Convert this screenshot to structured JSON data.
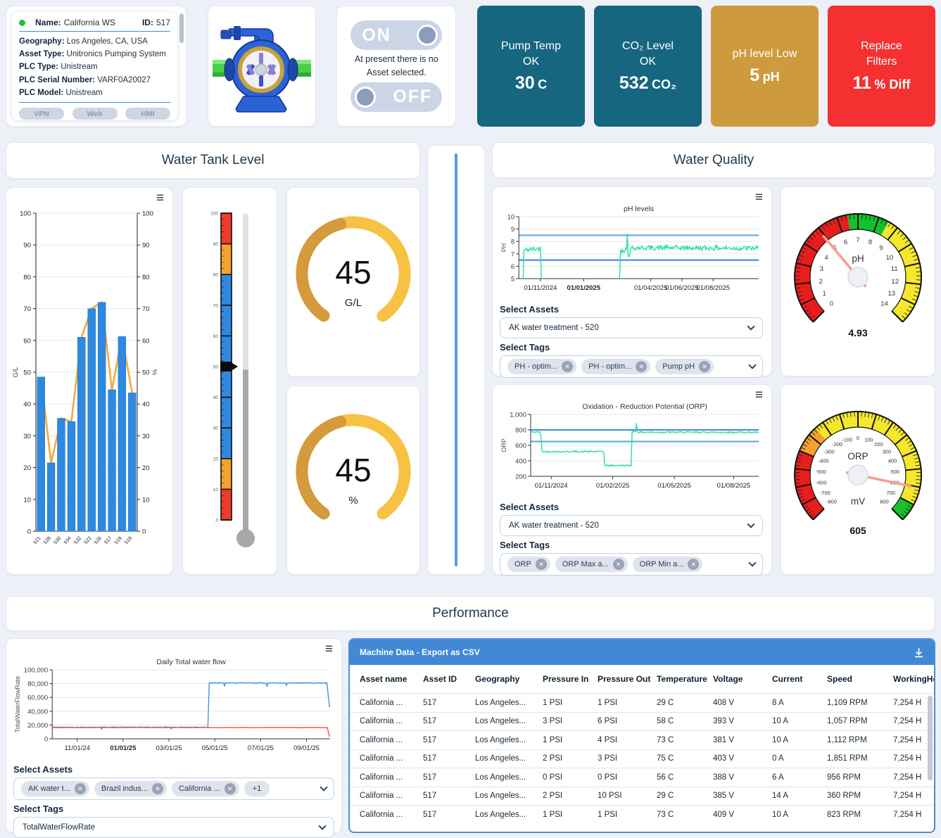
{
  "asset_card": {
    "name_label": "Name:",
    "name_value": "California WS",
    "id_label": "ID:",
    "id_value": "517",
    "fields": [
      {
        "label": "Geography:",
        "value": "Los Angeles, CA, USA"
      },
      {
        "label": "Asset Type:",
        "value": "Unitronics Pumping System"
      },
      {
        "label": "PLC Type:",
        "value": "Unistream"
      },
      {
        "label": "PLC Serial Number:",
        "value": "VARF0A20027"
      },
      {
        "label": "PLC Model:",
        "value": "Unistream"
      }
    ],
    "buttons": [
      "VPN",
      "Web",
      "HMI"
    ]
  },
  "toggle_card": {
    "on_label": "ON",
    "off_label": "OFF",
    "message_line1": "At present there is no",
    "message_line2": "Asset selected."
  },
  "status_cards": [
    {
      "title": "Pump Temp",
      "subtitle": "OK",
      "value": "30",
      "unit": "C",
      "color": "#166680"
    },
    {
      "title": "CO₂ Level",
      "subtitle": "OK",
      "value": "532",
      "unit": "CO₂",
      "color": "#166680"
    },
    {
      "title": "pH level Low",
      "value": "5",
      "unit": "pH",
      "color": "#cd9b3e"
    },
    {
      "title": "Replace",
      "subtitle": "Filters",
      "value": "11",
      "unit": "% Diff",
      "color": "#f43030"
    }
  ],
  "section_titles": {
    "water_tank": "Water Tank Level",
    "water_quality": "Water Quality",
    "performance": "Performance"
  },
  "water_quality": {
    "ph_panel": {
      "assets_label": "Select Assets",
      "assets_value": "AK water treatment - 520",
      "tags_label": "Select Tags",
      "tags": [
        "PH - optim...",
        "PH - optim...",
        "Pump pH"
      ]
    },
    "orp_panel": {
      "assets_label": "Select Assets",
      "assets_value": "AK water treatment - 520",
      "tags_label": "Select Tags",
      "tags": [
        "ORP",
        "ORP Max a...",
        "ORP Min a..."
      ]
    }
  },
  "performance": {
    "flow_panel": {
      "assets_label": "Select Assets",
      "asset_chips": [
        "AK water t...",
        "Brazil indus...",
        "California ..."
      ],
      "more_chip": "+1",
      "tags_label": "Select Tags",
      "tags_value": "TotalWaterFlowRate"
    },
    "table": {
      "title": "Machine Data - Export as CSV",
      "columns": [
        "Asset name",
        "Asset ID",
        "Geography",
        "Pressure In",
        "Pressure Out",
        "Temperature",
        "Voltage",
        "Current",
        "Speed",
        "WorkingHo..."
      ],
      "rows": [
        [
          "California ...",
          "517",
          "Los Angeles...",
          "1 PSI",
          "1 PSI",
          "29 C",
          "408 V",
          "8 A",
          "1,109 RPM",
          "7,254 H"
        ],
        [
          "California ...",
          "517",
          "Los Angeles...",
          "3 PSI",
          "6 PSI",
          "58 C",
          "393 V",
          "10 A",
          "1,057 RPM",
          "7,254 H"
        ],
        [
          "California ...",
          "517",
          "Los Angeles...",
          "1 PSI",
          "4 PSI",
          "73 C",
          "381 V",
          "10 A",
          "1,112 RPM",
          "7,254 H"
        ],
        [
          "California ...",
          "517",
          "Los Angeles...",
          "2 PSI",
          "3 PSI",
          "75 C",
          "403 V",
          "0 A",
          "1,851 RPM",
          "7,254 H"
        ],
        [
          "California ...",
          "517",
          "Los Angeles...",
          "0 PSI",
          "0 PSI",
          "56 C",
          "388 V",
          "6 A",
          "956 RPM",
          "7,254 H"
        ],
        [
          "California ...",
          "517",
          "Los Angeles...",
          "2 PSI",
          "10 PSI",
          "29 C",
          "385 V",
          "14 A",
          "360 RPM",
          "7,254 H"
        ],
        [
          "California ...",
          "517",
          "Los Angeles...",
          "1 PSI",
          "1 PSI",
          "73 C",
          "409 V",
          "10 A",
          "823 RPM",
          "7,254 H"
        ]
      ]
    }
  },
  "chart_data": [
    {
      "id": "tank_bar",
      "type": "bar",
      "categories": [
        "521",
        "528",
        "530",
        "534",
        "532",
        "522",
        "526",
        "517",
        "518",
        "519"
      ],
      "series": [
        {
          "name": "G/L",
          "color": "#2f89e0",
          "values": [
            48.5,
            21.5,
            35.5,
            34.5,
            61,
            70,
            72,
            44.5,
            61.2,
            43.5
          ]
        },
        {
          "name": "%",
          "color": "#f5a93d",
          "values": [
            48.5,
            21.5,
            35.5,
            34.5,
            61,
            70,
            72,
            44.5,
            61.2,
            43.5
          ]
        }
      ],
      "ylim": [
        0,
        100
      ],
      "ytick_step": 10,
      "ylabel_left": "G/L",
      "ylabel_right": "%"
    },
    {
      "id": "tank_thermo",
      "type": "thermometer",
      "min": 0,
      "max": 100,
      "tick_step": 10,
      "marker_value": 50,
      "fill_value": 49,
      "bands": [
        {
          "from": 0,
          "to": 10,
          "color": "#f23b2f"
        },
        {
          "from": 10,
          "to": 20,
          "color": "#f5a12f"
        },
        {
          "from": 20,
          "to": 80,
          "color": "#2f89e0"
        },
        {
          "from": 80,
          "to": 90,
          "color": "#f5a12f"
        },
        {
          "from": 90,
          "to": 100,
          "color": "#f23b2f"
        }
      ]
    },
    {
      "id": "donut_gl",
      "type": "donut",
      "min": 0,
      "max": 100,
      "value": 45,
      "display": "45",
      "unit": "G/L",
      "color_value": "#d49a3c",
      "color_rest": "#f7c243"
    },
    {
      "id": "donut_pct",
      "type": "donut",
      "min": 0,
      "max": 100,
      "value": 45,
      "display": "45",
      "unit": "%",
      "color_value": "#d49a3c",
      "color_rest": "#f7c243"
    },
    {
      "id": "ph_line",
      "type": "line",
      "title": "pH levels",
      "ylabel": "PH",
      "ylim": [
        5,
        10
      ],
      "yticks": [
        5,
        6,
        7,
        8,
        9,
        10
      ],
      "ref_lines": [
        {
          "y": 8.5,
          "color": "#6aaede"
        },
        {
          "y": 6.5,
          "color": "#4a90d9"
        }
      ],
      "xticks": [
        {
          "label": "01/11/2024",
          "x": 0.09
        },
        {
          "label": "01/01/2025",
          "x": 0.27,
          "bold": true
        },
        {
          "label": "01/04/2025",
          "x": 0.55
        },
        {
          "label": "01/06/2025",
          "x": 0.68
        },
        {
          "label": "01/08/2025",
          "x": 0.81
        }
      ],
      "series": [
        {
          "name": "Pump pH",
          "color": "#2bdf9f",
          "noise": 0.2,
          "segments": [
            [
              [
                0.018,
                5.0
              ],
              [
                0.021,
                7.3
              ],
              [
                0.09,
                7.45
              ],
              [
                0.094,
                5.0
              ]
            ],
            [
              [
                0.42,
                5.0
              ],
              [
                0.424,
                7.3
              ],
              [
                0.449,
                7.35
              ],
              [
                0.452,
                8.62
              ],
              [
                0.456,
                6.8
              ],
              [
                0.47,
                7.5
              ],
              [
                1.0,
                7.45
              ]
            ]
          ]
        }
      ]
    },
    {
      "id": "ph_gauge",
      "type": "gauge",
      "min": 0,
      "max": 14,
      "value": 4.93,
      "display": "4.93",
      "label": "pH",
      "sublabel": "",
      "label_step": 1,
      "bands": [
        {
          "from": 0,
          "to": 6.5,
          "color": "#ea1d1d"
        },
        {
          "from": 6.5,
          "to": 8.5,
          "color": "#16c22b"
        },
        {
          "from": 8.5,
          "to": 14,
          "color": "#f5e82c"
        }
      ]
    },
    {
      "id": "orp_line",
      "type": "line",
      "title": "Oxidation - Reduction Potential (ORP)",
      "ylabel": "ORP",
      "ylim": [
        200,
        1000
      ],
      "yticks": [
        200,
        400,
        600,
        800,
        1000
      ],
      "ref_lines": [
        {
          "y": 800,
          "color": "#4a90d9"
        },
        {
          "y": 650,
          "color": "#6aaede"
        }
      ],
      "xticks": [
        {
          "label": "01/11/2024",
          "x": 0.09
        },
        {
          "label": "01/02/2025",
          "x": 0.36
        },
        {
          "label": "01/05/2025",
          "x": 0.63
        },
        {
          "label": "01/08/2025",
          "x": 0.89
        }
      ],
      "series": [
        {
          "name": "ORP",
          "color": "#2bdf9f",
          "noise": 9,
          "segments": [
            [
              [
                0.0,
                772
              ],
              [
                0.04,
                772
              ],
              [
                0.045,
                700
              ],
              [
                0.05,
                520
              ],
              [
                0.32,
                520
              ],
              [
                0.325,
                340
              ],
              [
                0.44,
                340
              ],
              [
                0.445,
                780
              ],
              [
                0.46,
                780
              ],
              [
                0.464,
                888
              ],
              [
                0.468,
                770
              ],
              [
                1.0,
                768
              ]
            ]
          ]
        }
      ]
    },
    {
      "id": "orp_gauge",
      "type": "gauge",
      "min": -800,
      "max": 800,
      "value": 605,
      "display": "605",
      "label": "ORP",
      "sublabel": "mV",
      "label_step": 100,
      "bands": [
        {
          "from": -800,
          "to": -400,
          "color": "#ea1d1d"
        },
        {
          "from": -400,
          "to": -250,
          "color": "#f5a12f"
        },
        {
          "from": -250,
          "to": 700,
          "color": "#f5e82c"
        },
        {
          "from": 700,
          "to": 800,
          "color": "#16c22b"
        }
      ]
    },
    {
      "id": "flow_line",
      "type": "line",
      "title": "Daily Total water flow",
      "ylabel": "TotalWaterFlowRate",
      "ylim": [
        0,
        100000
      ],
      "yticks": [
        0,
        20000,
        40000,
        60000,
        80000,
        100000
      ],
      "xticks": [
        {
          "label": "11/01/24",
          "x": 0.09
        },
        {
          "label": "01/01/25",
          "x": 0.255,
          "bold": true
        },
        {
          "label": "03/01/25",
          "x": 0.42
        },
        {
          "label": "05/01/25",
          "x": 0.585
        },
        {
          "label": "07/01/25",
          "x": 0.75
        },
        {
          "label": "09/01/25",
          "x": 0.915
        }
      ],
      "series": [
        {
          "name": "flow-blue",
          "color": "#3f93e8",
          "noise": 500,
          "segments": [
            [
              [
                0.0,
                16800
              ],
              [
                0.425,
                16800
              ],
              [
                0.428,
                14500
              ],
              [
                0.431,
                16800
              ],
              [
                0.56,
                16800
              ],
              [
                0.565,
                81000
              ],
              [
                0.617,
                81000
              ],
              [
                0.62,
                76000
              ],
              [
                0.623,
                81000
              ],
              [
                0.77,
                81000
              ],
              [
                0.773,
                75500
              ],
              [
                0.776,
                81000
              ],
              [
                0.84,
                81000
              ],
              [
                0.843,
                77500
              ],
              [
                0.846,
                81000
              ],
              [
                0.988,
                81000
              ],
              [
                0.998,
                46000
              ]
            ]
          ]
        },
        {
          "name": "flow-red",
          "color": "#e05a52",
          "noise": 350,
          "segments": [
            [
              [
                0.0,
                16300
              ],
              [
                0.175,
                16300
              ],
              [
                0.178,
                14300
              ],
              [
                0.181,
                16300
              ],
              [
                0.99,
                16300
              ],
              [
                0.998,
                3200
              ]
            ]
          ]
        }
      ]
    }
  ]
}
